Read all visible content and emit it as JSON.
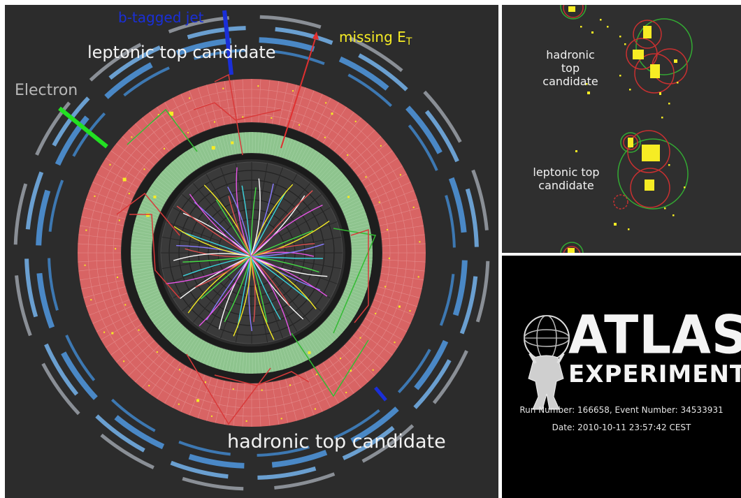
{
  "event_display": {
    "labels": {
      "btagged_jet": "b-tagged jet",
      "missing_et": "missing E",
      "missing_et_sub": "T",
      "leptonic_top": "leptonic top candidate",
      "electron": "Electron",
      "hadronic_top": "hadronic top candidate"
    },
    "colors": {
      "background": "#2c2c2c",
      "em_calorimeter": "#8ec48e",
      "had_calorimeter": "#d86464",
      "muon_chambers": "#4a88c6",
      "electron_track": "#22e022",
      "btag_jet": "#1a2fd8",
      "missing_et": "#e03030",
      "energy_deposits": "#f6ec24"
    }
  },
  "zoom_view": {
    "hadronic_label": "hadronic top candidate",
    "leptonic_label": "leptonic top candidate"
  },
  "logo_panel": {
    "title": "ATLAS",
    "subtitle": "EXPERIMENT",
    "run_info": "Run Number: 166658, Event Number: 34533931",
    "date_info": "Date: 2010-10-11 23:57:42 CEST"
  }
}
